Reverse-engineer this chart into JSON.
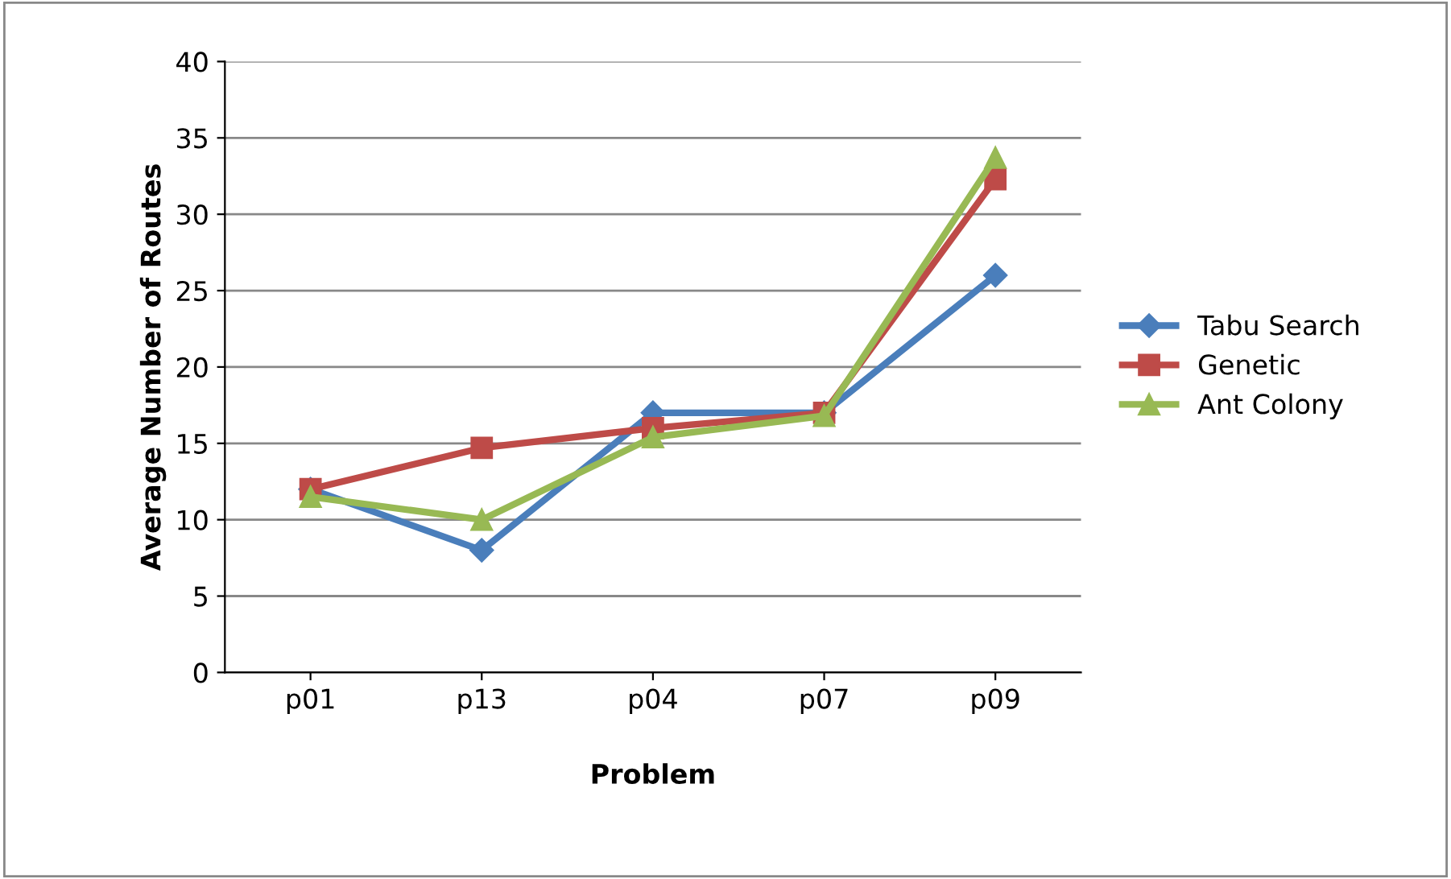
{
  "chart_data": {
    "type": "line",
    "xlabel": "Problem",
    "ylabel": "Average Number of Routes",
    "categories": [
      "p01",
      "p13",
      "p04",
      "p07",
      "p09"
    ],
    "series": [
      {
        "name": "Tabu Search",
        "color": "#4a7ebb",
        "marker": "diamond",
        "values": [
          12,
          8,
          17,
          17,
          26
        ]
      },
      {
        "name": "Genetic",
        "color": "#be4b48",
        "marker": "square",
        "values": [
          12,
          14.7,
          16,
          17,
          32.3
        ]
      },
      {
        "name": "Ant Colony",
        "color": "#98b954",
        "marker": "triangle",
        "values": [
          11.5,
          10,
          15.4,
          16.8,
          33.7
        ]
      }
    ],
    "ylim": [
      0,
      40
    ],
    "yticks": [
      0,
      5,
      10,
      15,
      20,
      25,
      30,
      35,
      40
    ],
    "grid": "y",
    "legend": "right",
    "line_style": "solid"
  }
}
